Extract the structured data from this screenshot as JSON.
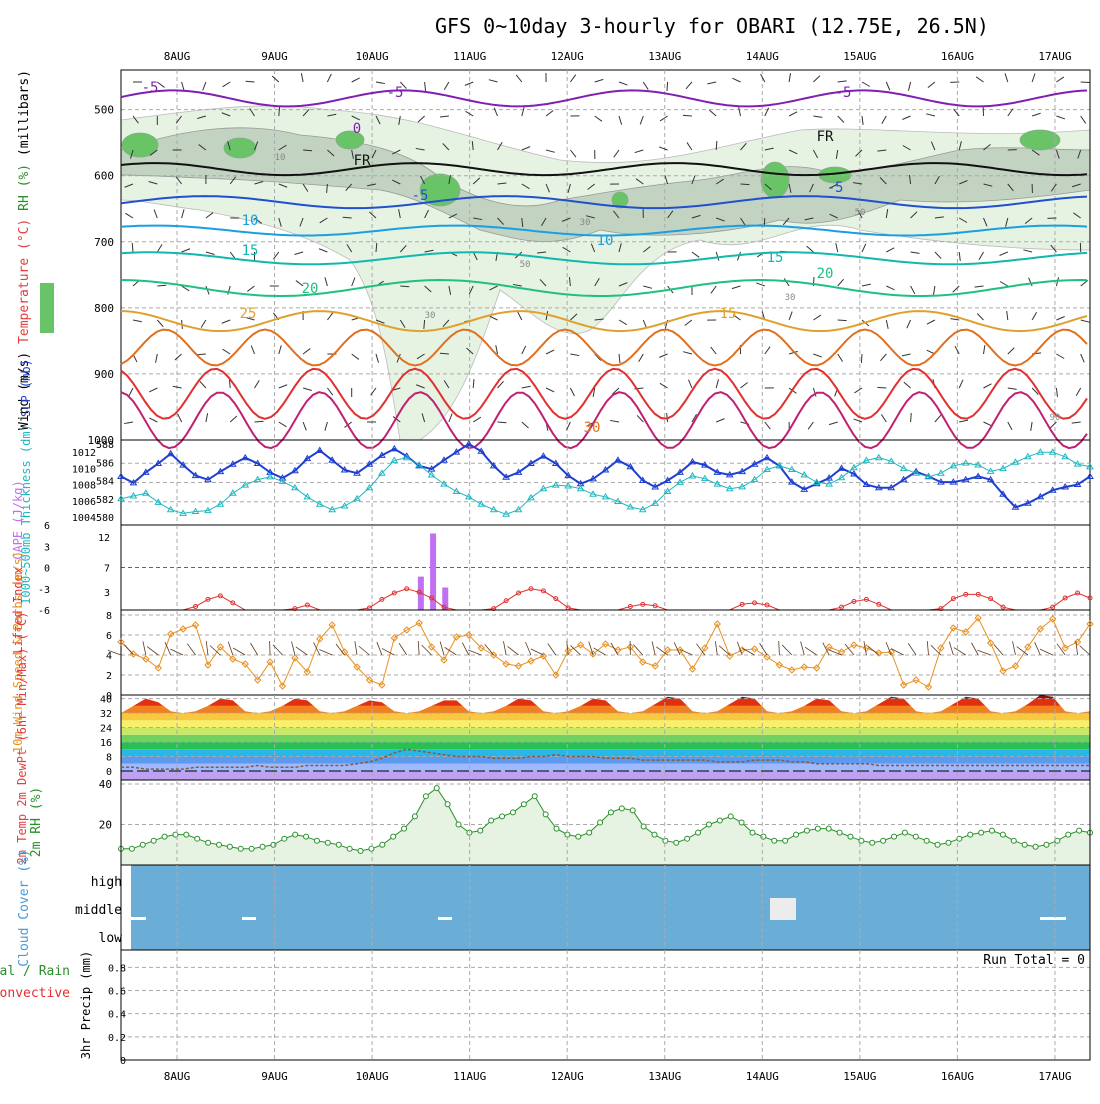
{
  "header": {
    "title": "GFS 0~10day 3-hourly for OBARI (12.75E, 26.5N)"
  },
  "dates": [
    "8AUG",
    "9AUG",
    "10AUG",
    "11AUG",
    "12AUG",
    "13AUG",
    "14AUG",
    "15AUG",
    "16AUG",
    "17AUG"
  ],
  "chart_data": [
    {
      "type": "heatmap",
      "panel": "upper-air",
      "ylabels": [
        "Wind (m/s)",
        "Temperature (°C)",
        "RH (%)",
        "(millibars)"
      ],
      "yticks": [
        500,
        600,
        700,
        800,
        900,
        1000
      ],
      "ylim": [
        1000,
        440
      ],
      "contour_labels": [
        "-5",
        "-5",
        "-5",
        "0",
        "FR",
        "FR",
        "-5",
        "-5",
        "10",
        "10",
        "15",
        "15",
        "20",
        "20",
        "25",
        "15",
        "30",
        "10",
        "30",
        "50",
        "30",
        "30",
        "50",
        "90"
      ],
      "grid": true
    },
    {
      "type": "line",
      "panel": "thickness-slp",
      "ylabels": [
        "1000~500mb Thickness (dm)",
        "SLP (mb)"
      ],
      "yticks_left": [
        580,
        582,
        584,
        586,
        588
      ],
      "yticks_right": [
        1004,
        1006,
        1008,
        1010,
        1012
      ],
      "series": [
        {
          "name": "SLP (mb)",
          "axis": "right",
          "color": "#1f3fd0",
          "values": [
            1009.0,
            1008.2,
            1009.5,
            1010.6,
            1011.8,
            1010.4,
            1009.1,
            1008.6,
            1009.6,
            1010.5,
            1011.3,
            1010.6,
            1009.5,
            1008.8,
            1009.7,
            1011.2,
            1012.2,
            1011.0,
            1009.8,
            1009.4,
            1010.5,
            1011.6,
            1012.4,
            1011.5,
            1010.3,
            1009.9,
            1011.0,
            1012.0,
            1013.0,
            1012.1,
            1010.3,
            1008.9,
            1009.5,
            1010.6,
            1011.5,
            1010.6,
            1009.1,
            1008.1,
            1008.7,
            1009.8,
            1011.0,
            1010.2,
            1008.5,
            1007.7,
            1008.5,
            1009.5,
            1010.8,
            1010.4,
            1009.5,
            1009.2,
            1009.6,
            1010.5,
            1011.3,
            1010.3,
            1008.3,
            1007.4,
            1008.1,
            1008.8,
            1010.0,
            1009.3,
            1008.0,
            1007.6,
            1007.6,
            1008.6,
            1009.6,
            1009.0,
            1008.3,
            1008.3,
            1008.6,
            1009.0,
            1008.6,
            1006.8,
            1005.2,
            1005.7,
            1006.5,
            1007.3,
            1007.7,
            1008.0,
            1009.0
          ]
        },
        {
          "name": "1000~500mb Thickness (dm)",
          "axis": "left",
          "color": "#20b8c0",
          "values": [
            582.0,
            582.3,
            582.6,
            581.6,
            580.8,
            580.4,
            580.6,
            580.7,
            581.4,
            582.6,
            583.5,
            584.1,
            584.4,
            583.9,
            583.2,
            582.2,
            581.4,
            580.8,
            581.2,
            582.0,
            583.2,
            584.8,
            586.2,
            586.5,
            585.7,
            584.6,
            583.6,
            582.8,
            582.2,
            581.4,
            580.8,
            580.3,
            580.8,
            582.1,
            583.1,
            583.5,
            583.4,
            583.1,
            582.5,
            582.2,
            581.7,
            581.1,
            580.8,
            581.5,
            582.8,
            583.8,
            584.5,
            584.2,
            583.6,
            583.1,
            583.3,
            584.1,
            585.2,
            585.6,
            585.2,
            584.6,
            583.8,
            583.6,
            584.3,
            585.4,
            586.2,
            586.5,
            586.1,
            585.3,
            584.8,
            584.4,
            584.8,
            585.6,
            585.9,
            585.7,
            585.0,
            585.3,
            586.0,
            586.6,
            587.1,
            587.1,
            586.6,
            585.8,
            585.5
          ]
        }
      ]
    },
    {
      "type": "bar",
      "panel": "lifted-cape",
      "ylabels": [
        "Lifted Index",
        "CAPE (J/kg)"
      ],
      "yticks_left": [
        "6",
        "3",
        "0",
        "-3",
        "-6"
      ],
      "yticks_right": [
        "3",
        "7",
        "12"
      ],
      "cape_bars": [
        {
          "date_frac": 10.5,
          "value": 5.5
        },
        {
          "date_frac": 10.625,
          "value": 12.6
        },
        {
          "date_frac": 10.75,
          "value": 3.7
        }
      ],
      "lifted_index": [
        6,
        6,
        6,
        6,
        6,
        6,
        5.5,
        4.5,
        4.0,
        5.0,
        6,
        6,
        6,
        6,
        5.8,
        5.3,
        6,
        6,
        6,
        6,
        5.7,
        4.5,
        3.6,
        3.0,
        3.5,
        4.3,
        5.6,
        6,
        6,
        6,
        5.8,
        4.7,
        3.6,
        3.0,
        3.3,
        4.4,
        5.7,
        6,
        6,
        6,
        6,
        5.5,
        5.2,
        5.4,
        6,
        6,
        6,
        6,
        6,
        6,
        5.2,
        5.0,
        5.3,
        6,
        6,
        6,
        6,
        6,
        5.6,
        4.8,
        4.5,
        5.2,
        6,
        6,
        6,
        6,
        5.8,
        4.4,
        3.8,
        3.8,
        4.4,
        5.6,
        6,
        6,
        6,
        5.6,
        4.3,
        3.6,
        4.3
      ]
    },
    {
      "type": "line",
      "panel": "wind10m",
      "ylabels": [
        "10m Wind Speed & Barbs",
        "(m/s)"
      ],
      "yticks": [
        0,
        2,
        4,
        6,
        8
      ],
      "series": [
        {
          "name": "10m Wind Speed",
          "color": "#e89020",
          "values": [
            5.3,
            4.1,
            3.6,
            2.7,
            6.1,
            6.6,
            7.0,
            3.0,
            4.8,
            3.6,
            3.1,
            1.5,
            3.3,
            0.9,
            3.7,
            2.3,
            5.6,
            7.0,
            4.3,
            2.8,
            1.5,
            1.0,
            5.7,
            6.5,
            7.2,
            4.8,
            3.5,
            5.8,
            6.0,
            4.7,
            4.0,
            3.1,
            2.9,
            3.4,
            3.9,
            2.0,
            4.4,
            5.0,
            4.1,
            5.1,
            4.5,
            4.8,
            3.3,
            2.9,
            4.5,
            4.5,
            2.6,
            4.7,
            7.1,
            3.9,
            4.5,
            4.6,
            3.8,
            3.0,
            2.5,
            2.8,
            2.7,
            4.8,
            4.3,
            5.0,
            4.7,
            4.2,
            4.3,
            1.0,
            1.5,
            0.8,
            4.7,
            6.7,
            6.3,
            7.7,
            5.2,
            2.4,
            2.9,
            4.8,
            6.6,
            7.6,
            4.7,
            5.3,
            7.1
          ]
        }
      ]
    },
    {
      "type": "area",
      "panel": "temp2m",
      "ylabels": [
        "2m Temp",
        "2m DewPt",
        "(6hr Min/Max)",
        "(°C)"
      ],
      "yticks": [
        0,
        8,
        16,
        24,
        32,
        40
      ],
      "series": [
        {
          "name": "2m Temp",
          "values": [
            32,
            36,
            40,
            38,
            33,
            32,
            33,
            36,
            40,
            39,
            33,
            32,
            33,
            36,
            40,
            39,
            33,
            32,
            33,
            36,
            39,
            38,
            33,
            32,
            33,
            36,
            39,
            39,
            33,
            32,
            33,
            36,
            40,
            39,
            33,
            32,
            33,
            36,
            40,
            39,
            33,
            32,
            33,
            37,
            41,
            40,
            33,
            32,
            33,
            37,
            41,
            40,
            33,
            32,
            33,
            36,
            40,
            39,
            33,
            32,
            33,
            37,
            41,
            40,
            33,
            32,
            33,
            37,
            41,
            40,
            33,
            32,
            33,
            37,
            42,
            41,
            33,
            32,
            33
          ]
        },
        {
          "name": "2m DewPt",
          "values": [
            2,
            2,
            1,
            1,
            1,
            1,
            2,
            2,
            2,
            2,
            2,
            3,
            2,
            2,
            2,
            3,
            3,
            3,
            3,
            4,
            5,
            7,
            10,
            12,
            11,
            10,
            9,
            8,
            8,
            8,
            7,
            7,
            7,
            8,
            8,
            9,
            8,
            8,
            8,
            7,
            7,
            7,
            6,
            6,
            6,
            6,
            6,
            6,
            5,
            5,
            5,
            6,
            6,
            6,
            5,
            5,
            4,
            4,
            4,
            4,
            4,
            3,
            3,
            3,
            3,
            3,
            3,
            3,
            3,
            3,
            3,
            3,
            3,
            3,
            3,
            3,
            3,
            3,
            3
          ]
        }
      ]
    },
    {
      "type": "area",
      "panel": "rh2m",
      "ylabels": [
        "2m RH",
        "(%)"
      ],
      "yticks": [
        20,
        40
      ],
      "series": [
        {
          "name": "2m RH",
          "values": [
            8,
            8,
            10,
            12,
            14,
            15,
            15,
            13,
            11,
            10,
            9,
            8,
            8,
            9,
            10,
            13,
            15,
            14,
            12,
            11,
            10,
            8,
            7,
            8,
            10,
            14,
            18,
            24,
            34,
            38,
            30,
            20,
            16,
            17,
            22,
            24,
            26,
            30,
            34,
            25,
            18,
            15,
            14,
            16,
            21,
            26,
            28,
            27,
            19,
            15,
            12,
            11,
            13,
            16,
            20,
            22,
            24,
            21,
            16,
            14,
            12,
            12,
            15,
            17,
            18,
            18,
            16,
            14,
            12,
            11,
            12,
            14,
            16,
            14,
            12,
            10,
            11,
            13,
            15,
            16,
            17,
            15,
            12,
            10,
            9,
            10,
            12,
            15,
            17,
            16
          ]
        }
      ]
    },
    {
      "type": "heatmap",
      "panel": "cloud-cover",
      "ylabels": [
        "Cloud Cover",
        "(%)"
      ],
      "levels": [
        "high",
        "middle",
        "low"
      ]
    },
    {
      "type": "bar",
      "panel": "precip",
      "ylabels": [
        "Total / Rain",
        "Convective",
        "3hr Precip (mm)"
      ],
      "yticks": [
        0,
        0.2,
        0.4,
        0.6,
        0.8
      ],
      "run_total": "Run Total = 0",
      "values": []
    }
  ],
  "colors": {
    "slp": "#1f3fd0",
    "thickness": "#20b8c0",
    "wind": "#e89020",
    "rh": "#2a8f2a",
    "cloud": "#6aaed8",
    "cape": "#c070f0",
    "lifted": "#e03030"
  }
}
